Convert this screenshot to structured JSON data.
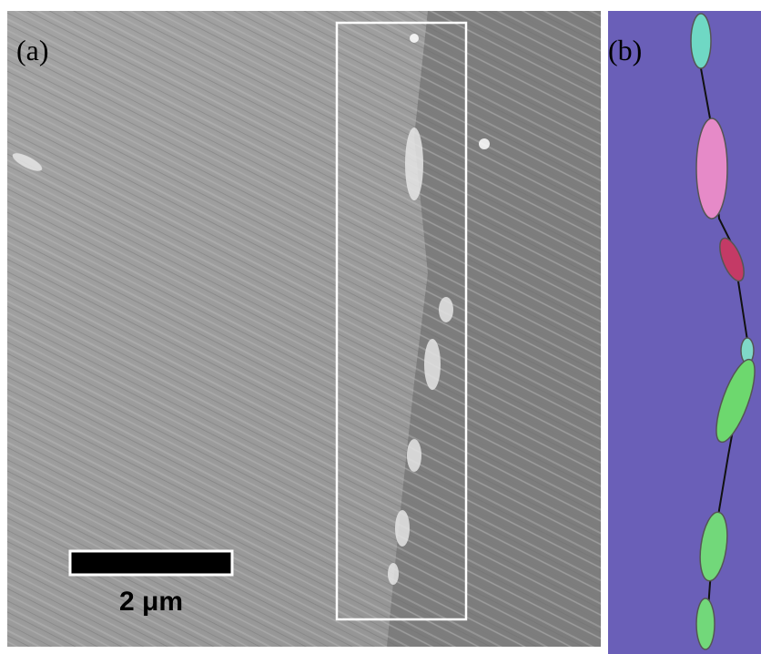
{
  "panels": [
    {
      "label": "(a)",
      "scale_bar": "2 μm"
    },
    {
      "label": "(b)"
    }
  ]
}
